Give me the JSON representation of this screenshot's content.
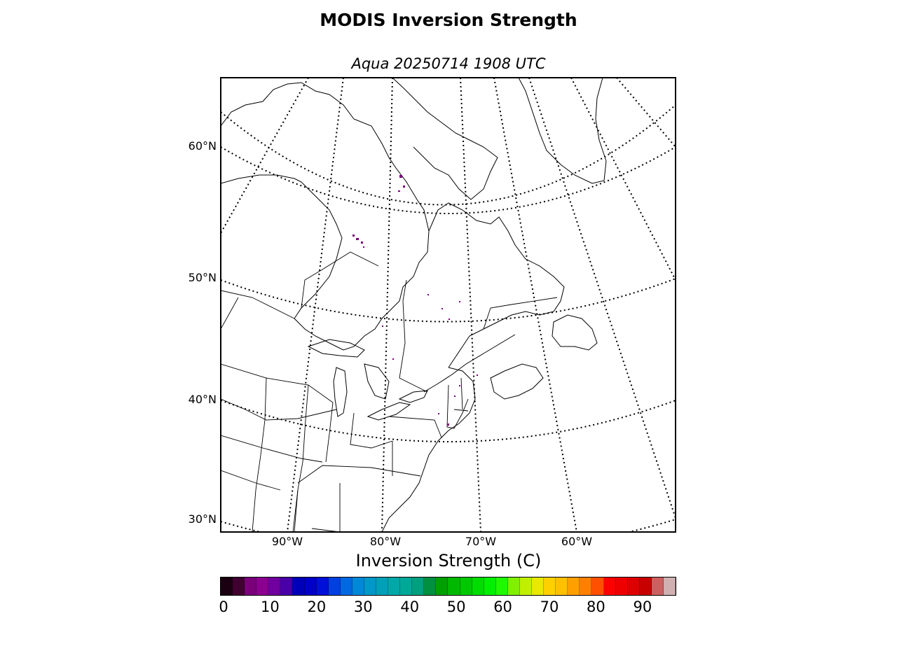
{
  "figure": {
    "title": "MODIS Inversion Strength",
    "subtitle": "Aqua 20250714 1908 UTC"
  },
  "map": {
    "projection": "lambert-conformal",
    "region": "northeastern North America",
    "lat_labels": [
      "60°N",
      "50°N",
      "40°N",
      "30°N"
    ],
    "lon_labels": [
      "90°W",
      "80°W",
      "70°W",
      "60°W"
    ],
    "graticule_style": "dotted",
    "data_coverage": "sparse low values (0-10 C) scattered over Quebec, Hudson Bay coast and New England"
  },
  "colorbar": {
    "title": "Inversion Strength (C)",
    "min": 0,
    "max": 98,
    "ticks": [
      "0",
      "10",
      "20",
      "30",
      "40",
      "50",
      "60",
      "70",
      "80",
      "90"
    ],
    "colors": [
      "#1a0010",
      "#400030",
      "#7a007a",
      "#8c0090",
      "#7000a0",
      "#4a00a8",
      "#0000b8",
      "#0000c8",
      "#0010d8",
      "#0040e0",
      "#0068e0",
      "#0088d8",
      "#0098c8",
      "#00a0b8",
      "#00a8a8",
      "#00a898",
      "#00a080",
      "#009040",
      "#00a000",
      "#00b800",
      "#00c800",
      "#00dc00",
      "#00f000",
      "#20f800",
      "#80f000",
      "#c0f000",
      "#e8e800",
      "#ffd000",
      "#ffc000",
      "#ffa000",
      "#ff8000",
      "#ff5000",
      "#ff0000",
      "#ee0000",
      "#dd0000",
      "#c80000",
      "#cc6060",
      "#d0b0b0"
    ]
  }
}
